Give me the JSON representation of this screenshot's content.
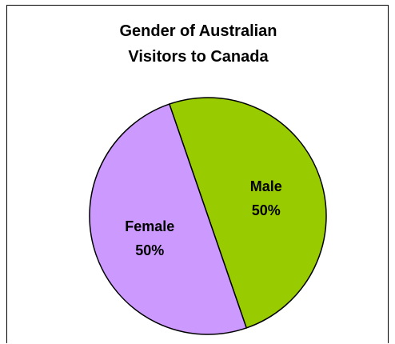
{
  "chart_data": {
    "type": "pie",
    "title_lines": [
      "Gender of Australian",
      "Visitors to Canada"
    ],
    "slices": [
      {
        "label": "Male",
        "value": 50,
        "value_label": "50%",
        "color": "#99cc00"
      },
      {
        "label": "Female",
        "value": 50,
        "value_label": "50%",
        "color": "#cc99ff"
      }
    ],
    "legend": false
  }
}
